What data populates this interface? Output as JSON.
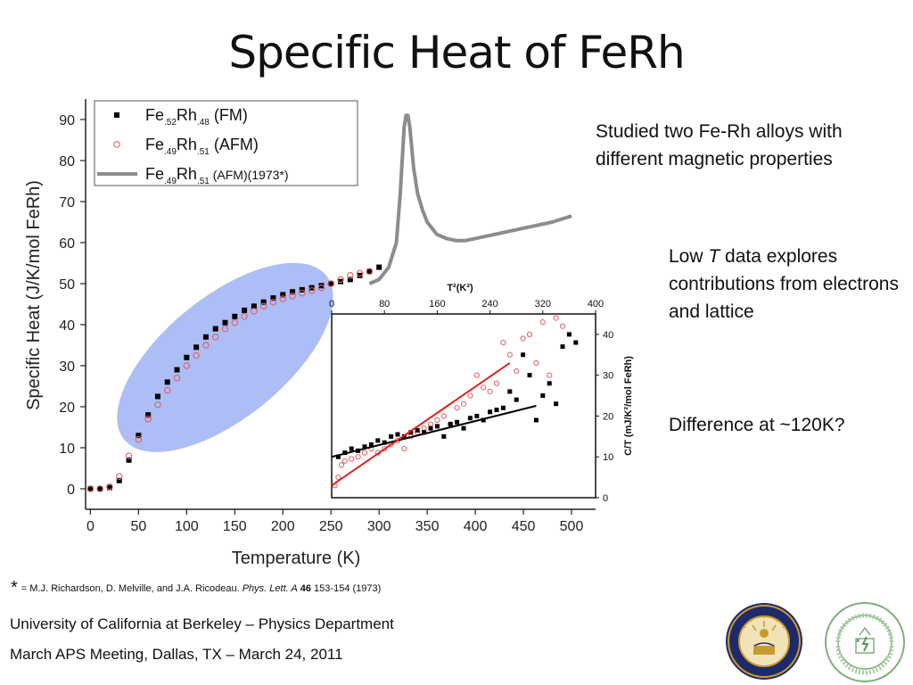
{
  "slide": {
    "title": "Specific Heat of FeRh",
    "notes": {
      "n1": "Studied two Fe-Rh alloys with different magnetic properties",
      "n2_pre": "Low ",
      "n2_italic": "T",
      "n2_post": " data explores contributions from electrons and lattice",
      "n3": "Difference at ~120K?"
    },
    "footnote": {
      "star": "*",
      "prefix": "= M.J. Richardson, D. Melville, and J.A. Ricodeau.  ",
      "journal": "Phys. Lett. A",
      "volume": "46",
      "pages": " 153-154 (1973)"
    },
    "footer": {
      "line1": "University of California at Berkeley – Physics Department",
      "line2": "March APS Meeting, Dallas, TX – March 24, 2011"
    },
    "logos": {
      "uc_seal": "uc-berkeley-seal",
      "doe_seal": "department-of-energy-seal"
    }
  },
  "chart_data": [
    {
      "type": "scatter",
      "title": "",
      "xlabel": "Temperature (K)",
      "ylabel": "Specific Heat (J/K/mol FeRh)",
      "xlim": [
        -5,
        525
      ],
      "ylim": [
        -5,
        95
      ],
      "xticks": [
        0,
        50,
        100,
        150,
        200,
        250,
        300,
        350,
        400,
        450,
        500
      ],
      "yticks": [
        0,
        10,
        20,
        30,
        40,
        50,
        60,
        70,
        80,
        90
      ],
      "legend": {
        "placement": "top-left",
        "entries": [
          {
            "base": "Fe",
            "sub1": ".52",
            "mid": "Rh",
            "sub2": ".48",
            "tail": " (FM)",
            "color": "#000000",
            "marker": "square"
          },
          {
            "base": "Fe",
            "sub1": ".49",
            "mid": "Rh",
            "sub2": ".51",
            "tail": " (AFM)",
            "color": "#e06060",
            "marker": "circle"
          },
          {
            "base": "Fe",
            "sub1": ".49",
            "mid": "Rh",
            "sub2": ".51",
            "tail": " (AFM)(1973*)",
            "color": "#8c8c8c",
            "marker": "line"
          }
        ]
      },
      "series": [
        {
          "name": "Fe.52Rh.48 (FM)",
          "color": "#000000",
          "x": [
            0,
            10,
            20,
            30,
            40,
            50,
            60,
            70,
            80,
            90,
            100,
            110,
            120,
            130,
            140,
            150,
            160,
            170,
            180,
            190,
            200,
            210,
            220,
            230,
            240,
            250,
            260,
            270,
            280,
            290,
            300
          ],
          "y": [
            0,
            0,
            0.3,
            2,
            7,
            13,
            18,
            22.5,
            26,
            29,
            32,
            34.5,
            37,
            39,
            40.5,
            42,
            43.5,
            44.5,
            45.5,
            46.5,
            47.3,
            48,
            48.5,
            49,
            49.5,
            50,
            50.5,
            51,
            52,
            53,
            54
          ]
        },
        {
          "name": "Fe.49Rh.51 (AFM)",
          "color": "#e06060",
          "x": [
            0,
            10,
            20,
            30,
            40,
            50,
            60,
            70,
            80,
            90,
            100,
            110,
            120,
            130,
            140,
            150,
            160,
            170,
            180,
            190,
            200,
            210,
            220,
            230,
            240,
            250,
            260,
            270,
            280,
            290
          ],
          "y": [
            0,
            0,
            0.5,
            3,
            8,
            12,
            17,
            20.5,
            24,
            27,
            30,
            32.5,
            35,
            37,
            39,
            40.5,
            42,
            43.3,
            44.5,
            45.5,
            46.3,
            47,
            47.7,
            48.3,
            49,
            50,
            51,
            52,
            52.5,
            53
          ]
        },
        {
          "name": "Fe.49Rh.51 (AFM)(1973*)",
          "color": "#8c8c8c",
          "x": [
            290,
            300,
            310,
            318,
            322,
            326,
            328,
            330,
            332,
            336,
            340,
            345,
            350,
            360,
            370,
            380,
            390,
            400,
            420,
            440,
            460,
            480,
            500
          ],
          "y": [
            50,
            51,
            54,
            60,
            72,
            88,
            91,
            91,
            88,
            78,
            72,
            68,
            65,
            62,
            61,
            60.5,
            60.5,
            61,
            62,
            63,
            64,
            65,
            66.5
          ]
        }
      ],
      "annotation": {
        "shape": "ellipse",
        "color": "#9fb1f4",
        "x_range": [
          35,
          245
        ],
        "y_range": [
          12,
          52
        ]
      }
    },
    {
      "type": "scatter",
      "title": "",
      "xlabel": "T²(K²)",
      "ylabel": "C/T (mJ/K²/mol FeRh)",
      "xlim": [
        0,
        400
      ],
      "ylim": [
        0,
        45
      ],
      "xticks": [
        0,
        80,
        160,
        240,
        320,
        400
      ],
      "yticks": [
        0,
        10,
        20,
        30,
        40
      ],
      "series": [
        {
          "name": "FM",
          "color": "#000000",
          "x": [
            10,
            20,
            30,
            40,
            50,
            60,
            70,
            80,
            90,
            100,
            110,
            120,
            130,
            140,
            150,
            160,
            170,
            180,
            190,
            200,
            210,
            220,
            230,
            240,
            250,
            260,
            270,
            280,
            290,
            300,
            310,
            320,
            330,
            340,
            350,
            360,
            370
          ],
          "y": [
            10,
            11,
            12,
            11.5,
            12.5,
            13,
            14,
            13.5,
            15,
            15.5,
            15,
            16,
            16.5,
            16,
            17,
            17.5,
            15,
            18,
            18.5,
            17,
            19.5,
            20,
            19,
            21,
            21.5,
            22,
            26,
            24,
            35,
            30,
            19,
            25,
            28,
            23,
            37,
            40,
            38
          ]
        },
        {
          "name": "AFM",
          "color": "#e06060",
          "x": [
            5,
            10,
            15,
            20,
            30,
            40,
            50,
            60,
            70,
            80,
            90,
            100,
            110,
            120,
            130,
            140,
            150,
            160,
            170,
            180,
            190,
            200,
            210,
            220,
            230,
            240,
            250,
            260,
            270,
            280,
            290,
            300,
            310,
            320,
            330,
            340,
            350
          ],
          "y": [
            3,
            5,
            8,
            9,
            9.5,
            10,
            11,
            12,
            11,
            12,
            13,
            14,
            12,
            15,
            16,
            17,
            18,
            19,
            20,
            18,
            22,
            23,
            25,
            30,
            27,
            26,
            28,
            38,
            35,
            31,
            39,
            40,
            33,
            43,
            30,
            44,
            42
          ]
        }
      ],
      "fits": [
        {
          "name": "FM fit",
          "color": "#000000",
          "x": [
            0,
            310
          ],
          "y": [
            10,
            22.5
          ]
        },
        {
          "name": "AFM fit",
          "color": "#e02020",
          "x": [
            0,
            270
          ],
          "y": [
            3,
            33
          ]
        }
      ]
    }
  ]
}
